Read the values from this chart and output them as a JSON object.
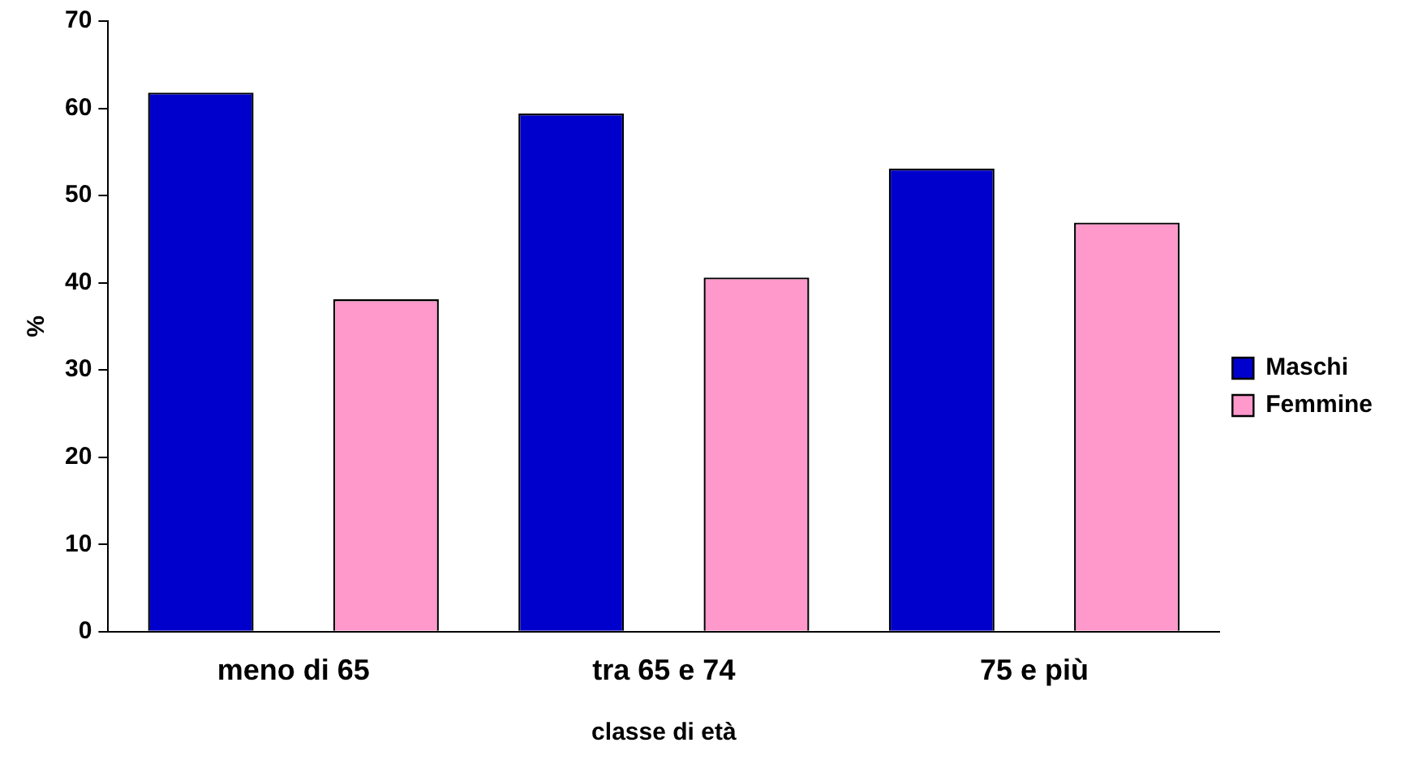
{
  "chart_data": {
    "type": "bar",
    "xlabel": "classe di età",
    "ylabel": "%",
    "categories": [
      "meno di 65",
      "tra 65 e 74",
      "75 e più"
    ],
    "series": [
      {
        "name": "Maschi",
        "color": "#0000cc",
        "values": [
          61.8,
          59.4,
          53.1
        ]
      },
      {
        "name": "Femmine",
        "color": "#ff99cc",
        "values": [
          38.1,
          40.6,
          46.9
        ]
      }
    ],
    "ylim": [
      0,
      70
    ],
    "yticks": [
      0,
      10,
      20,
      30,
      40,
      50,
      60,
      70
    ],
    "grid": false,
    "legend": "right"
  }
}
